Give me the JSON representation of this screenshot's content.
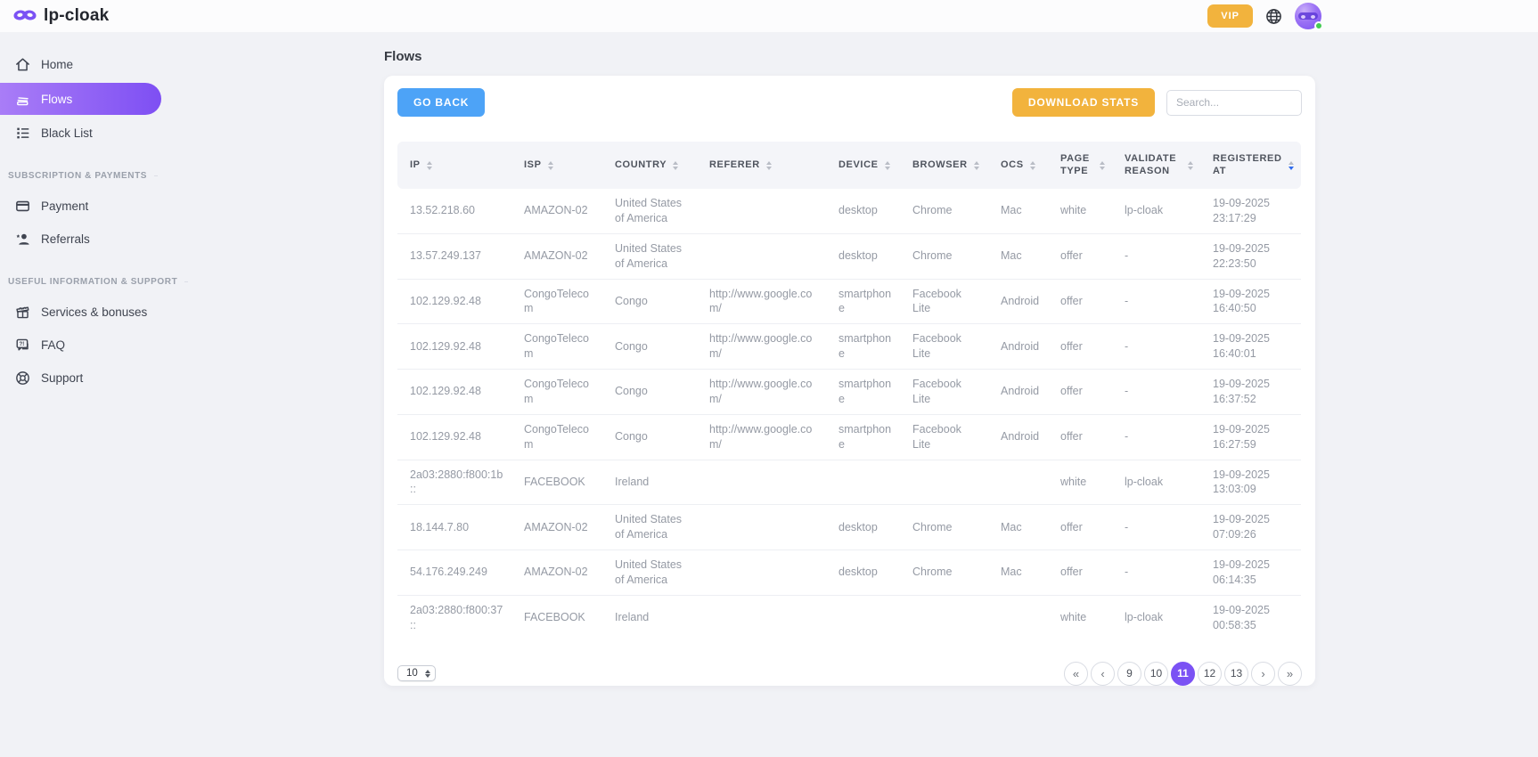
{
  "brand": {
    "name": "lp-cloak"
  },
  "topbar": {
    "vip_label": "VIP"
  },
  "sidebar": {
    "main_items": [
      {
        "label": "Home",
        "icon": "home-icon",
        "active": false
      },
      {
        "label": "Flows",
        "icon": "flows-icon",
        "active": true
      },
      {
        "label": "Black List",
        "icon": "black-list-icon",
        "active": false
      }
    ],
    "sections": [
      {
        "title": "SUBSCRIPTION & PAYMENTS",
        "items": [
          {
            "label": "Payment",
            "icon": "payment-icon"
          },
          {
            "label": "Referrals",
            "icon": "referrals-icon"
          }
        ]
      },
      {
        "title": "USEFUL INFORMATION & SUPPORT",
        "items": [
          {
            "label": "Services & bonuses",
            "icon": "gift-icon"
          },
          {
            "label": "FAQ",
            "icon": "faq-icon"
          },
          {
            "label": "Support",
            "icon": "support-icon"
          }
        ]
      }
    ]
  },
  "page": {
    "title": "Flows"
  },
  "toolbar": {
    "go_back_label": "GO BACK",
    "download_stats_label": "DOWNLOAD STATS",
    "search_placeholder": "Search..."
  },
  "table": {
    "columns": [
      {
        "label": "IP"
      },
      {
        "label": "ISP"
      },
      {
        "label": "COUNTRY"
      },
      {
        "label": "REFERER"
      },
      {
        "label": "DEVICE"
      },
      {
        "label": "BROWSER"
      },
      {
        "label": "OCS"
      },
      {
        "label": "PAGE TYPE"
      },
      {
        "label": "VALIDATE REASON"
      },
      {
        "label": "REGISTERED AT",
        "sorted": "desc"
      }
    ],
    "rows": [
      {
        "ip": "13.52.218.60",
        "isp": "AMAZON-02",
        "country": "United States of America",
        "referer": "",
        "device": "desktop",
        "browser": "Chrome",
        "ocs": "Mac",
        "page_type": "white",
        "validate_reason": "lp-cloak",
        "registered_date": "19-09-2025",
        "registered_time": "23:17:29"
      },
      {
        "ip": "13.57.249.137",
        "isp": "AMAZON-02",
        "country": "United States of America",
        "referer": "",
        "device": "desktop",
        "browser": "Chrome",
        "ocs": "Mac",
        "page_type": "offer",
        "validate_reason": "-",
        "registered_date": "19-09-2025",
        "registered_time": "22:23:50"
      },
      {
        "ip": "102.129.92.48",
        "isp": "CongoTelecom",
        "country": "Congo",
        "referer": "http://www.google.com/",
        "device": "smartphone",
        "browser": "Facebook Lite",
        "ocs": "Android",
        "page_type": "offer",
        "validate_reason": "-",
        "registered_date": "19-09-2025",
        "registered_time": "16:40:50"
      },
      {
        "ip": "102.129.92.48",
        "isp": "CongoTelecom",
        "country": "Congo",
        "referer": "http://www.google.com/",
        "device": "smartphone",
        "browser": "Facebook Lite",
        "ocs": "Android",
        "page_type": "offer",
        "validate_reason": "-",
        "registered_date": "19-09-2025",
        "registered_time": "16:40:01"
      },
      {
        "ip": "102.129.92.48",
        "isp": "CongoTelecom",
        "country": "Congo",
        "referer": "http://www.google.com/",
        "device": "smartphone",
        "browser": "Facebook Lite",
        "ocs": "Android",
        "page_type": "offer",
        "validate_reason": "-",
        "registered_date": "19-09-2025",
        "registered_time": "16:37:52"
      },
      {
        "ip": "102.129.92.48",
        "isp": "CongoTelecom",
        "country": "Congo",
        "referer": "http://www.google.com/",
        "device": "smartphone",
        "browser": "Facebook Lite",
        "ocs": "Android",
        "page_type": "offer",
        "validate_reason": "-",
        "registered_date": "19-09-2025",
        "registered_time": "16:27:59"
      },
      {
        "ip": "2a03:2880:f800:1b::",
        "isp": "FACEBOOK",
        "country": "Ireland",
        "referer": "",
        "device": "",
        "browser": "",
        "ocs": "",
        "page_type": "white",
        "validate_reason": "lp-cloak",
        "registered_date": "19-09-2025",
        "registered_time": "13:03:09"
      },
      {
        "ip": "18.144.7.80",
        "isp": "AMAZON-02",
        "country": "United States of America",
        "referer": "",
        "device": "desktop",
        "browser": "Chrome",
        "ocs": "Mac",
        "page_type": "offer",
        "validate_reason": "-",
        "registered_date": "19-09-2025",
        "registered_time": "07:09:26"
      },
      {
        "ip": "54.176.249.249",
        "isp": "AMAZON-02",
        "country": "United States of America",
        "referer": "",
        "device": "desktop",
        "browser": "Chrome",
        "ocs": "Mac",
        "page_type": "offer",
        "validate_reason": "-",
        "registered_date": "19-09-2025",
        "registered_time": "06:14:35"
      },
      {
        "ip": "2a03:2880:f800:37::",
        "isp": "FACEBOOK",
        "country": "Ireland",
        "referer": "",
        "device": "",
        "browser": "",
        "ocs": "",
        "page_type": "white",
        "validate_reason": "lp-cloak",
        "registered_date": "19-09-2025",
        "registered_time": "00:58:35"
      }
    ]
  },
  "pagination": {
    "page_size": "10",
    "buttons": [
      {
        "label": "«",
        "name": "first-page-button",
        "nav": true
      },
      {
        "label": "‹",
        "name": "prev-page-button",
        "nav": true
      },
      {
        "label": "9",
        "name": "page-9-button"
      },
      {
        "label": "10",
        "name": "page-10-button"
      },
      {
        "label": "11",
        "name": "page-11-button",
        "active": true
      },
      {
        "label": "12",
        "name": "page-12-button"
      },
      {
        "label": "13",
        "name": "page-13-button"
      },
      {
        "label": "›",
        "name": "next-page-button",
        "nav": true
      },
      {
        "label": "»",
        "name": "last-page-button",
        "nav": true
      }
    ]
  },
  "colors": {
    "accent_purple": "#7b52f4",
    "amber": "#f2b33d",
    "blue": "#4da3f7",
    "sort_active_blue": "#2e6bee",
    "online_green": "#43cb51"
  }
}
